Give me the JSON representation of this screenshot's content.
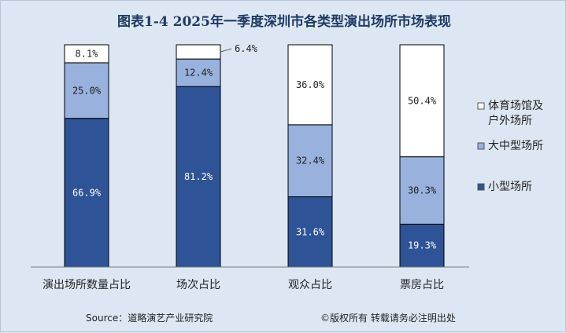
{
  "chart_data": {
    "type": "bar",
    "stacked": true,
    "percent": true,
    "title": "图表1-4 2025年一季度深圳市各类型演出场所市场表现",
    "categories": [
      "演出场所数量占比",
      "场次占比",
      "观众占比",
      "票房占比"
    ],
    "series": [
      {
        "name": "小型场所",
        "color": "#2e5396",
        "values": [
          66.9,
          81.2,
          31.6,
          19.3
        ]
      },
      {
        "name": "大中型场所",
        "color": "#98b1dd",
        "values": [
          25.0,
          12.4,
          32.4,
          30.3
        ]
      },
      {
        "name": "体育场馆及户外场所",
        "color": "#ffffff",
        "values": [
          8.1,
          6.4,
          36.0,
          50.4
        ]
      }
    ],
    "value_labels": [
      [
        "66.9%",
        "81.2%",
        "31.6%",
        "19.3%"
      ],
      [
        "25.0%",
        "12.4%",
        "32.4%",
        "30.3%"
      ],
      [
        "8.1%",
        "6.4%",
        "36.0%",
        "50.4%"
      ]
    ],
    "ylim": [
      0,
      100
    ],
    "grid": false,
    "legend_position": "right",
    "legend_lines": [
      [
        "小型场所"
      ],
      [
        "大中型场所"
      ],
      [
        "体育场馆及",
        "户外场所"
      ]
    ]
  },
  "footer": {
    "source": "Source：道略演艺产业研究院",
    "copyright": "©版权所有 转载请务必注明出处"
  }
}
